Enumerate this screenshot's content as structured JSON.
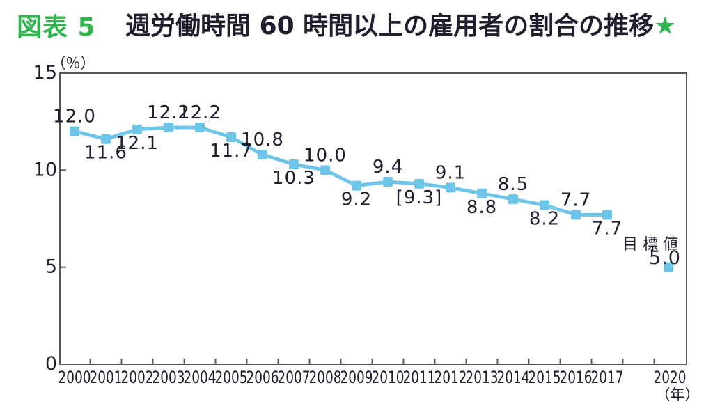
{
  "header": {
    "figure_label": "図表 5",
    "title": "週労働時間 60 時間以上の雇用者の割合の推移",
    "star": "★"
  },
  "colors": {
    "accent_green": "#2FB44E",
    "line_blue": "#6EC5E8",
    "text_dark": "#1E1E2E",
    "axis_gray": "#54545E"
  },
  "chart_data": {
    "type": "line",
    "title": "週労働時間60時間以上の雇用者の割合の推移",
    "y_unit_label": "（％）",
    "x_unit_label": "（年）",
    "ylim": [
      0,
      15
    ],
    "grid": false,
    "legend": "none",
    "yticks": [
      {
        "value": 15,
        "label": "15"
      },
      {
        "value": 10,
        "label": "10"
      },
      {
        "value": 5,
        "label": "5"
      },
      {
        "value": 0,
        "label": "0"
      }
    ],
    "categories": [
      "2000",
      "2001",
      "2002",
      "2003",
      "2004",
      "2005",
      "2006",
      "2007",
      "2008",
      "2009",
      "2010",
      "2011",
      "2012",
      "2013",
      "2014",
      "2015",
      "2016",
      "2017"
    ],
    "series": [
      {
        "color": "#6EC5E8",
        "values": [
          12.0,
          11.6,
          12.1,
          12.2,
          12.2,
          11.7,
          10.8,
          10.3,
          10.0,
          9.2,
          9.4,
          9.3,
          9.1,
          8.8,
          8.5,
          8.2,
          7.7,
          7.7
        ],
        "point_labels": [
          "12.0",
          "11.6",
          "12.1",
          "12.2",
          "12.2",
          "11.7",
          "10.8",
          "10.3",
          "10.0",
          "9.2",
          "9.4",
          "[9.3]",
          "9.1",
          "8.8",
          "8.5",
          "8.2",
          "7.7",
          "7.7"
        ],
        "label_positions": [
          "above",
          "below",
          "below",
          "above",
          "above",
          "below",
          "above",
          "below",
          "above",
          "below",
          "above",
          "below",
          "above",
          "below",
          "above",
          "below",
          "above",
          "below"
        ]
      }
    ],
    "target_point": {
      "label": "目標値",
      "year_label": "2020",
      "value": 5.0,
      "value_label": "5.0",
      "color": "#6EC5E8"
    }
  }
}
